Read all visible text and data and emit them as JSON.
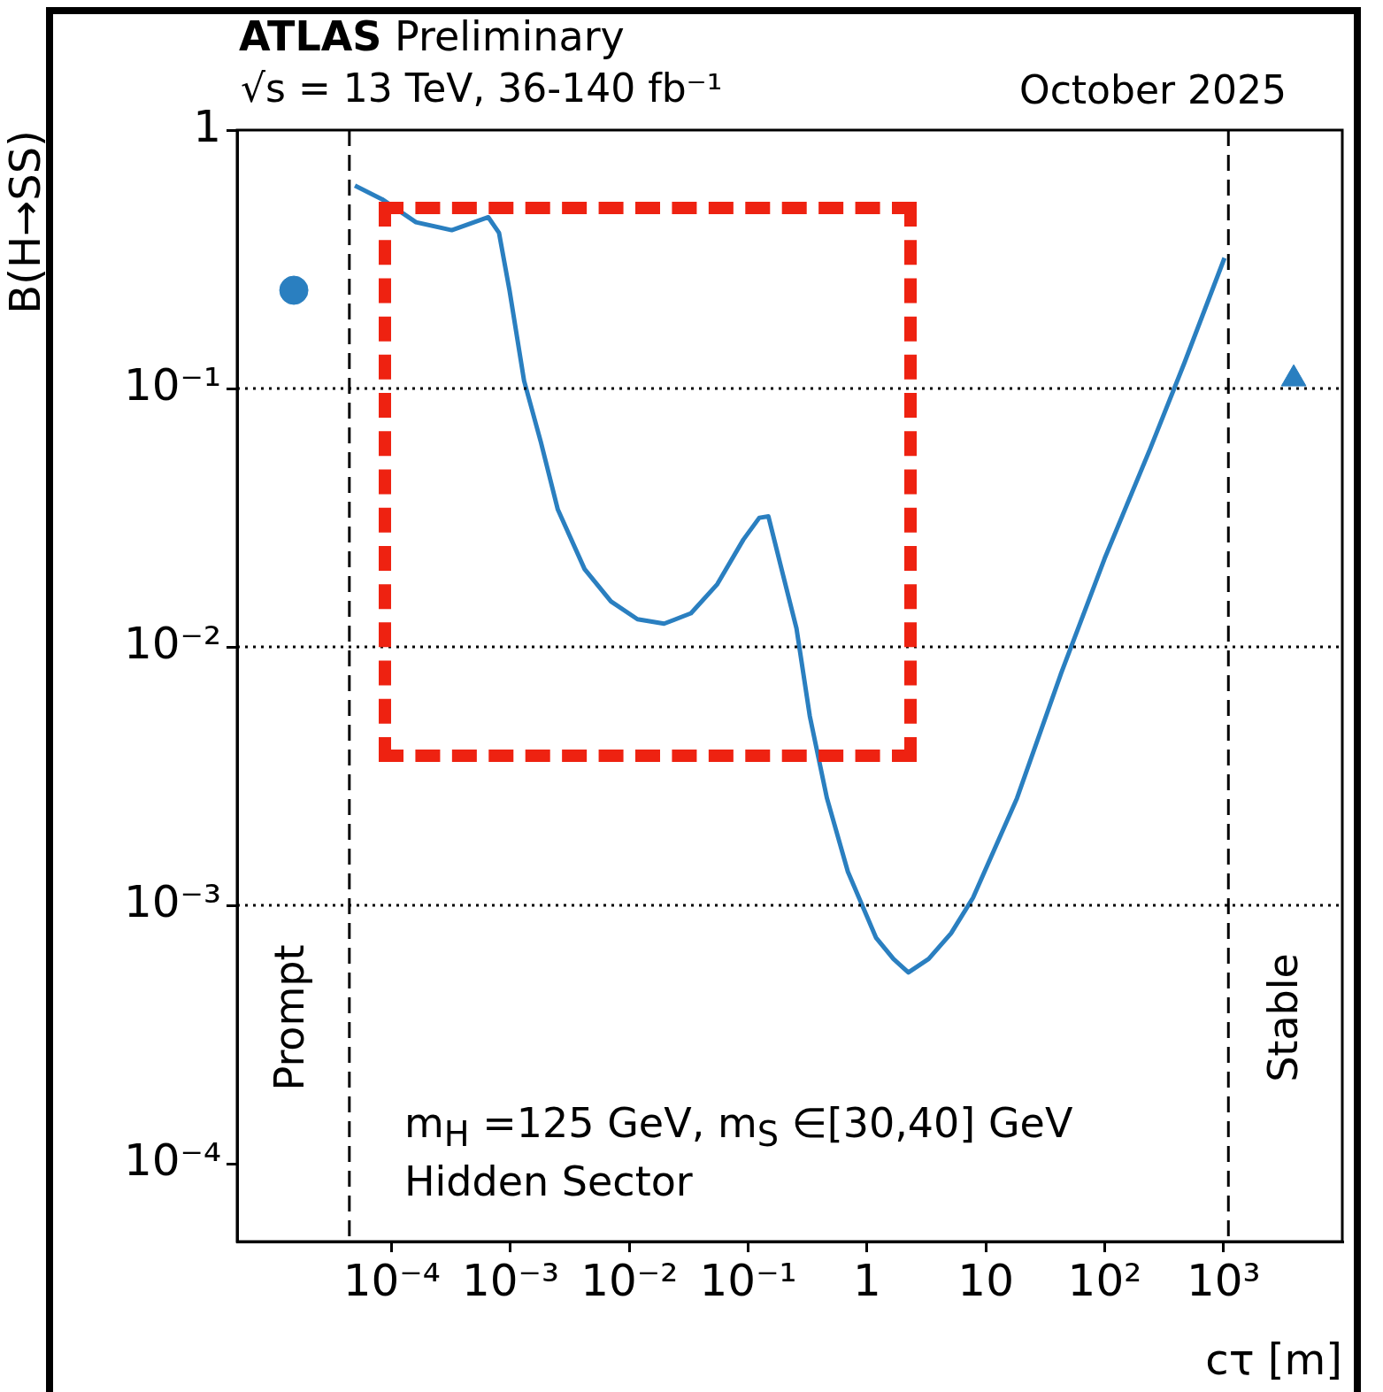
{
  "chart_data": {
    "type": "line",
    "title": "ATLAS Preliminary",
    "subtitle": "√s = 13 TeV, 36-140 fb⁻¹",
    "xlabel": "cτ [m]",
    "ylabel": "B(H→SS)",
    "annotations": [
      "October 2025",
      "m$_{H}$ =125 GeV, m$_{S}$ ∈[30,40] GeV",
      "Hidden Sector",
      "Prompt",
      "Stable"
    ],
    "log": "xy",
    "xlim": [
      5e-06,
      10000
    ],
    "ylim": [
      5e-05,
      1
    ],
    "xticks": [
      {
        "value": 0.0001,
        "label": "10⁻⁴"
      },
      {
        "value": 0.001,
        "label": "10⁻³"
      },
      {
        "value": 0.01,
        "label": "10⁻²"
      },
      {
        "value": 0.1,
        "label": "10⁻¹"
      },
      1,
      10,
      {
        "value": 100,
        "label": "10²"
      },
      {
        "value": 1000,
        "label": "10³"
      }
    ],
    "yticks": [
      {
        "value": 0.0001,
        "label": "10⁻⁴"
      },
      {
        "value": 0.001,
        "label": "10⁻³"
      },
      {
        "value": 0.01,
        "label": "10⁻²"
      },
      {
        "value": 0.1,
        "label": "10⁻¹"
      },
      1
    ],
    "ref_lines": [
      {
        "axis": "x",
        "value": 4.4e-05,
        "label": null,
        "color": "#000000",
        "line_style": "dashed"
      },
      {
        "axis": "x",
        "value": 1100,
        "label": null,
        "color": "#000000",
        "line_style": "dashed"
      },
      {
        "axis": "y",
        "value": 0.1,
        "label": null,
        "color": "#000000",
        "line_style": "dotted"
      },
      {
        "axis": "y",
        "value": 0.01,
        "label": null,
        "color": "#000000",
        "line_style": "dotted"
      },
      {
        "axis": "y",
        "value": 0.001,
        "label": null,
        "color": "#000000",
        "line_style": "dotted"
      }
    ],
    "legend": false,
    "series": [
      {
        "type": "line",
        "color": "#2a7fc0",
        "line_style": "solid",
        "marker": "none",
        "x": [
          4.9e-05,
          8.3e-05,
          0.00016,
          0.00032,
          0.00065,
          0.0008,
          0.00098,
          0.0013,
          0.0018,
          0.0025,
          0.0042,
          0.007,
          0.0117,
          0.0196,
          0.033,
          0.055,
          0.091,
          0.124,
          0.148,
          0.197,
          0.255,
          0.33,
          0.46,
          0.69,
          1.19,
          1.67,
          2.23,
          3.3,
          5.1,
          7.8,
          18.3,
          43,
          100,
          240,
          470,
          1020
        ],
        "values": [
          0.61,
          0.54,
          0.44,
          0.41,
          0.46,
          0.4,
          0.24,
          0.107,
          0.062,
          0.034,
          0.02,
          0.015,
          0.0128,
          0.0123,
          0.0135,
          0.0175,
          0.026,
          0.0316,
          0.032,
          0.0189,
          0.0118,
          0.0054,
          0.0026,
          0.00135,
          0.00075,
          0.00062,
          0.00055,
          0.00062,
          0.00078,
          0.00107,
          0.0026,
          0.0079,
          0.022,
          0.058,
          0.126,
          0.32
        ]
      },
      {
        "type": "scatter",
        "color": "#2a7fc0",
        "marker": "circle",
        "x": [
          1.5e-05
        ],
        "values": [
          0.24
        ]
      },
      {
        "type": "scatter",
        "color": "#2a7fc0",
        "marker": "triangle",
        "x": [
          3900
        ],
        "values": [
          0.109
        ]
      }
    ]
  }
}
